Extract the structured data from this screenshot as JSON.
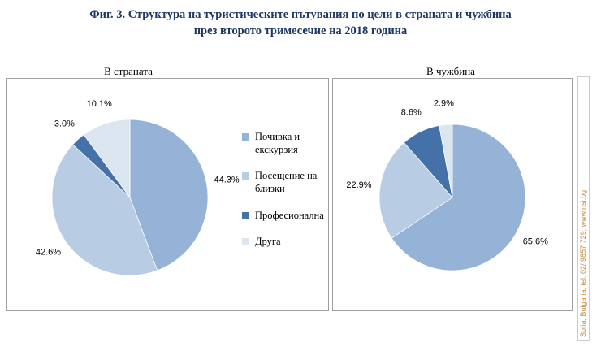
{
  "title": {
    "line1": "Фиг. 3. Структура на туристическите пътувания по цели в страната и чужбина",
    "line2": "през второто тримесечие на 2018 година"
  },
  "colors": [
    "#95b3d7",
    "#b8cce4",
    "#4472a8",
    "#dce6f1"
  ],
  "legend": {
    "items": [
      {
        "label": "Почивка и екскурзия",
        "color": "#95b3d7"
      },
      {
        "label": "Посещение на близки",
        "color": "#b8cce4"
      },
      {
        "label": "Професионална",
        "color": "#4472a8"
      },
      {
        "label": "Друга",
        "color": "#dce6f1"
      }
    ]
  },
  "chart_data": [
    {
      "type": "pie",
      "title": "В страната",
      "categories": [
        "Почивка и екскурзия",
        "Посещение на близки",
        "Професионална",
        "Друга"
      ],
      "values": [
        44.3,
        42.6,
        3.0,
        10.1
      ],
      "labels": [
        "44.3%",
        "42.6%",
        "3.0%",
        "10.1%"
      ],
      "start_angle_deg": 0,
      "direction": "clockwise",
      "legend_position": "right"
    },
    {
      "type": "pie",
      "title": "В чужбина",
      "categories": [
        "Почивка и екскурзия",
        "Посещение на близки",
        "Професионална",
        "Друга"
      ],
      "values": [
        65.6,
        22.9,
        8.6,
        2.9
      ],
      "labels": [
        "65.6%",
        "22.9%",
        "8.6%",
        "2.9%"
      ],
      "start_angle_deg": 0,
      "direction": "clockwise",
      "legend_position": "none"
    }
  ],
  "watermark": "Sofia, Bulgaria, tel. 02/ 9857 729, www.nsi.bg"
}
